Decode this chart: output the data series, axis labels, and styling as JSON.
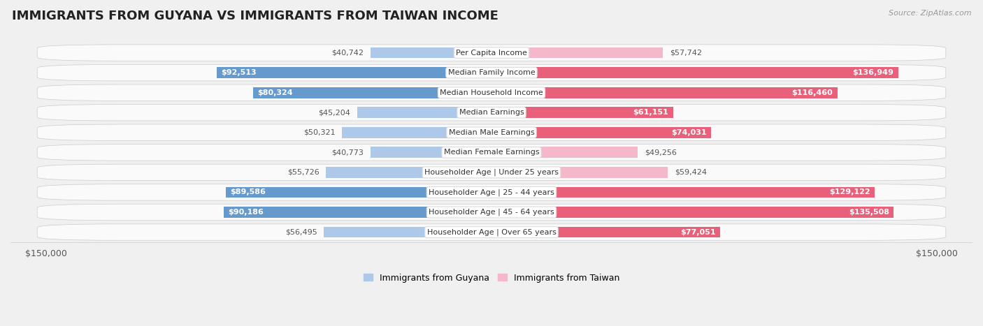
{
  "title": "IMMIGRANTS FROM GUYANA VS IMMIGRANTS FROM TAIWAN INCOME",
  "source": "Source: ZipAtlas.com",
  "categories": [
    "Per Capita Income",
    "Median Family Income",
    "Median Household Income",
    "Median Earnings",
    "Median Male Earnings",
    "Median Female Earnings",
    "Householder Age | Under 25 years",
    "Householder Age | 25 - 44 years",
    "Householder Age | 45 - 64 years",
    "Householder Age | Over 65 years"
  ],
  "guyana_values": [
    40742,
    92513,
    80324,
    45204,
    50321,
    40773,
    55726,
    89586,
    90186,
    56495
  ],
  "taiwan_values": [
    57742,
    136949,
    116460,
    61151,
    74031,
    49256,
    59424,
    129122,
    135508,
    77051
  ],
  "guyana_labels": [
    "$40,742",
    "$92,513",
    "$80,324",
    "$45,204",
    "$50,321",
    "$40,773",
    "$55,726",
    "$89,586",
    "$90,186",
    "$56,495"
  ],
  "taiwan_labels": [
    "$57,742",
    "$136,949",
    "$116,460",
    "$61,151",
    "$74,031",
    "$49,256",
    "$59,424",
    "$129,122",
    "$135,508",
    "$77,051"
  ],
  "guyana_color_light": "#adc8e8",
  "guyana_color_dark": "#6699cc",
  "taiwan_color_light": "#f5b8cb",
  "taiwan_color_dark": "#e8607a",
  "max_value": 150000,
  "x_axis_label_left": "$150,000",
  "x_axis_label_right": "$150,000",
  "legend_guyana": "Immigrants from Guyana",
  "legend_taiwan": "Immigrants from Taiwan",
  "background_color": "#f0f0f0",
  "row_bg_color": "#fafafa",
  "inside_label_threshold": 60000,
  "title_fontsize": 13,
  "label_fontsize": 8,
  "cat_fontsize": 8
}
